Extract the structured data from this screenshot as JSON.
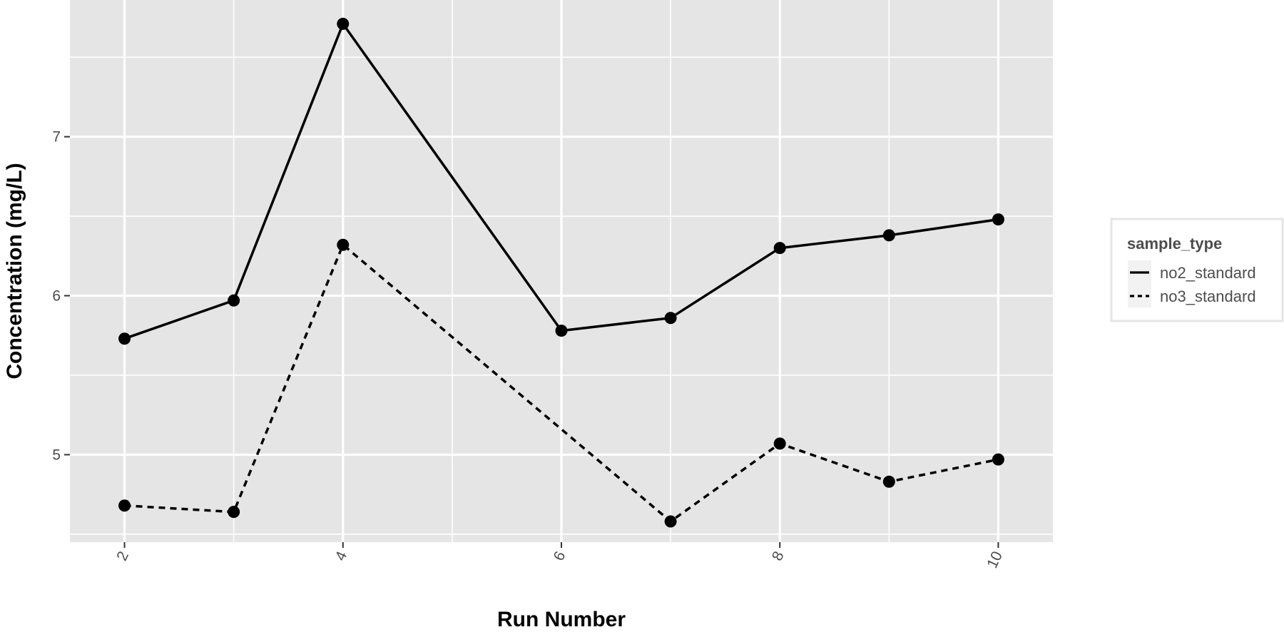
{
  "chart_data": {
    "type": "line",
    "xlabel": "Run Number",
    "ylabel": "Concentration (mg/L)",
    "x": [
      2,
      3,
      4,
      6,
      7,
      8,
      9,
      10
    ],
    "x_ticks": [
      2,
      4,
      6,
      8,
      10
    ],
    "x_ticks_minor": [
      3,
      5,
      7,
      9
    ],
    "y_ticks": [
      5,
      6,
      7
    ],
    "xlim": [
      1.5,
      10.5
    ],
    "ylim": [
      4.45,
      7.86
    ],
    "grid": true,
    "legend": {
      "title": "sample_type",
      "position": "right"
    },
    "series": [
      {
        "name": "no2_standard",
        "linetype": "solid",
        "values": [
          5.73,
          5.97,
          7.71,
          5.78,
          5.86,
          6.3,
          6.38,
          6.48
        ]
      },
      {
        "name": "no3_standard",
        "linetype": "dashed",
        "values": [
          4.68,
          4.64,
          6.32,
          null,
          4.58,
          5.07,
          4.83,
          4.97
        ]
      }
    ],
    "colors": {
      "panel": "#e5e5e5",
      "grid": "#ffffff",
      "line": "#000000",
      "tick_text": "#4d4d4d"
    }
  }
}
